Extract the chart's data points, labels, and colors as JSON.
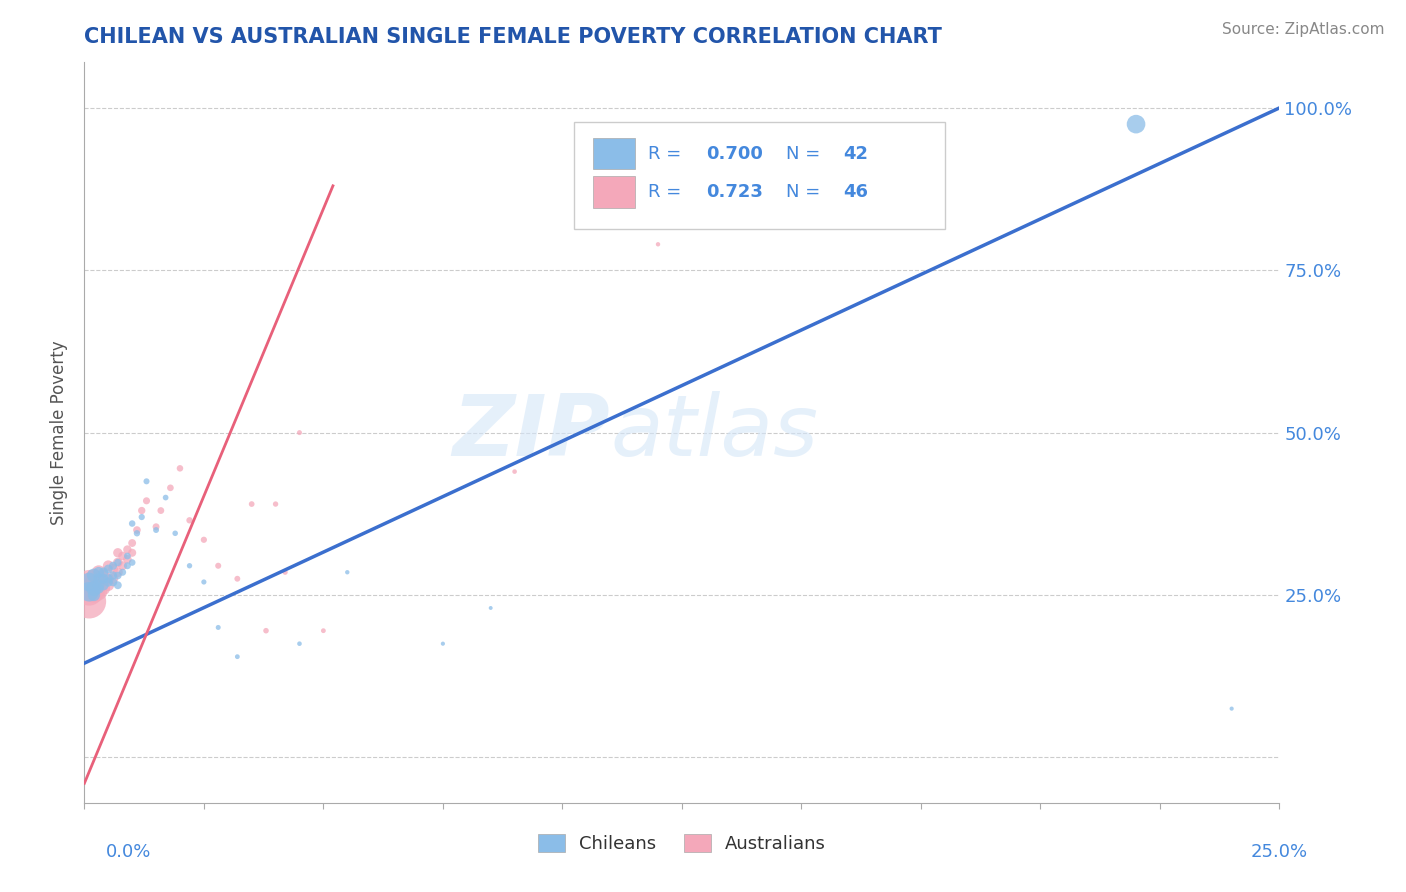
{
  "title": "CHILEAN VS AUSTRALIAN SINGLE FEMALE POVERTY CORRELATION CHART",
  "source_text": "Source: ZipAtlas.com",
  "ylabel": "Single Female Poverty",
  "blue_R": 0.7,
  "blue_N": 42,
  "pink_R": 0.723,
  "pink_N": 46,
  "blue_color": "#8bbde8",
  "pink_color": "#f4a8ba",
  "blue_line_color": "#3b6fce",
  "pink_line_color": "#e8607a",
  "legend_label_blue": "Chileans",
  "legend_label_pink": "Australians",
  "watermark": "ZIPatlas",
  "watermark_color": "#c8daf0",
  "title_color": "#2255aa",
  "axis_label_color": "#4488dd",
  "xmin": 0.0,
  "xmax": 0.25,
  "ymin": -0.07,
  "ymax": 1.07,
  "blue_line_x0": 0.0,
  "blue_line_y0": 0.145,
  "blue_line_x1": 0.25,
  "blue_line_y1": 1.0,
  "pink_line_x0": 0.0,
  "pink_line_y0": -0.04,
  "pink_line_x1": 0.052,
  "pink_line_y1": 0.88,
  "blue_scatter_x": [
    0.001,
    0.001,
    0.002,
    0.002,
    0.002,
    0.003,
    0.003,
    0.003,
    0.003,
    0.004,
    0.004,
    0.004,
    0.005,
    0.005,
    0.005,
    0.006,
    0.006,
    0.006,
    0.007,
    0.007,
    0.007,
    0.008,
    0.009,
    0.009,
    0.01,
    0.01,
    0.011,
    0.012,
    0.013,
    0.015,
    0.017,
    0.019,
    0.022,
    0.025,
    0.028,
    0.032,
    0.045,
    0.055,
    0.075,
    0.085,
    0.22,
    0.24
  ],
  "blue_scatter_y": [
    0.255,
    0.27,
    0.26,
    0.28,
    0.25,
    0.265,
    0.275,
    0.285,
    0.26,
    0.265,
    0.275,
    0.285,
    0.27,
    0.275,
    0.29,
    0.27,
    0.28,
    0.295,
    0.265,
    0.28,
    0.3,
    0.285,
    0.295,
    0.31,
    0.3,
    0.36,
    0.345,
    0.37,
    0.425,
    0.35,
    0.4,
    0.345,
    0.295,
    0.27,
    0.2,
    0.155,
    0.175,
    0.285,
    0.175,
    0.23,
    0.975,
    0.075
  ],
  "blue_sizes": [
    200,
    180,
    120,
    100,
    80,
    70,
    65,
    60,
    55,
    55,
    50,
    48,
    45,
    42,
    40,
    38,
    36,
    34,
    32,
    30,
    28,
    26,
    25,
    24,
    23,
    22,
    21,
    20,
    19,
    18,
    17,
    16,
    15,
    14,
    13,
    12,
    11,
    10,
    9,
    8,
    180,
    9
  ],
  "pink_scatter_x": [
    0.001,
    0.001,
    0.001,
    0.002,
    0.002,
    0.002,
    0.003,
    0.003,
    0.003,
    0.003,
    0.004,
    0.004,
    0.004,
    0.005,
    0.005,
    0.005,
    0.006,
    0.006,
    0.007,
    0.007,
    0.007,
    0.008,
    0.008,
    0.009,
    0.009,
    0.01,
    0.01,
    0.011,
    0.012,
    0.013,
    0.015,
    0.016,
    0.018,
    0.02,
    0.022,
    0.025,
    0.028,
    0.032,
    0.035,
    0.038,
    0.04,
    0.042,
    0.045,
    0.05,
    0.09,
    0.12
  ],
  "pink_scatter_y": [
    0.24,
    0.255,
    0.27,
    0.255,
    0.265,
    0.275,
    0.255,
    0.265,
    0.275,
    0.285,
    0.26,
    0.27,
    0.28,
    0.265,
    0.275,
    0.295,
    0.275,
    0.29,
    0.285,
    0.3,
    0.315,
    0.295,
    0.31,
    0.305,
    0.32,
    0.315,
    0.33,
    0.35,
    0.38,
    0.395,
    0.355,
    0.38,
    0.415,
    0.445,
    0.365,
    0.335,
    0.295,
    0.275,
    0.39,
    0.195,
    0.39,
    0.285,
    0.5,
    0.195,
    0.44,
    0.79
  ],
  "pink_sizes": [
    600,
    400,
    300,
    250,
    200,
    180,
    150,
    130,
    110,
    100,
    90,
    80,
    75,
    70,
    65,
    60,
    55,
    52,
    50,
    48,
    45,
    42,
    40,
    38,
    36,
    34,
    32,
    30,
    28,
    26,
    25,
    24,
    23,
    22,
    21,
    20,
    19,
    18,
    17,
    16,
    15,
    14,
    13,
    12,
    11,
    10
  ]
}
